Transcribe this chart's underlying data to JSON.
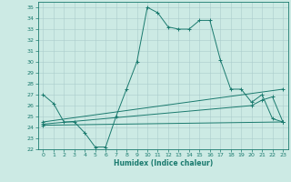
{
  "xlabel": "Humidex (Indice chaleur)",
  "background_color": "#cceae4",
  "grid_color": "#aacccc",
  "line_color": "#1a7a6e",
  "xlim": [
    -0.5,
    23.5
  ],
  "ylim": [
    22,
    35.5
  ],
  "yticks": [
    22,
    23,
    24,
    25,
    26,
    27,
    28,
    29,
    30,
    31,
    32,
    33,
    34,
    35
  ],
  "xticks": [
    0,
    1,
    2,
    3,
    4,
    5,
    6,
    7,
    8,
    9,
    10,
    11,
    12,
    13,
    14,
    15,
    16,
    17,
    18,
    19,
    20,
    21,
    22,
    23
  ],
  "series": [
    {
      "x": [
        0,
        1,
        2,
        3,
        4,
        5,
        6,
        7,
        8,
        9,
        10,
        11,
        12,
        13,
        14,
        15,
        16,
        17,
        18,
        19,
        20,
        21,
        22,
        23
      ],
      "y": [
        27,
        26.2,
        24.5,
        24.5,
        23.5,
        22.2,
        22.2,
        25.0,
        27.5,
        30.0,
        35.0,
        34.5,
        33.2,
        33.0,
        33.0,
        33.8,
        33.8,
        30.2,
        27.5,
        27.5,
        26.3,
        27.0,
        24.8,
        24.5
      ]
    },
    {
      "x": [
        0,
        23
      ],
      "y": [
        24.5,
        27.5
      ]
    },
    {
      "x": [
        0,
        20,
        21,
        22,
        23
      ],
      "y": [
        24.3,
        26.0,
        26.5,
        26.8,
        24.5
      ]
    },
    {
      "x": [
        0,
        23
      ],
      "y": [
        24.2,
        24.5
      ]
    }
  ]
}
